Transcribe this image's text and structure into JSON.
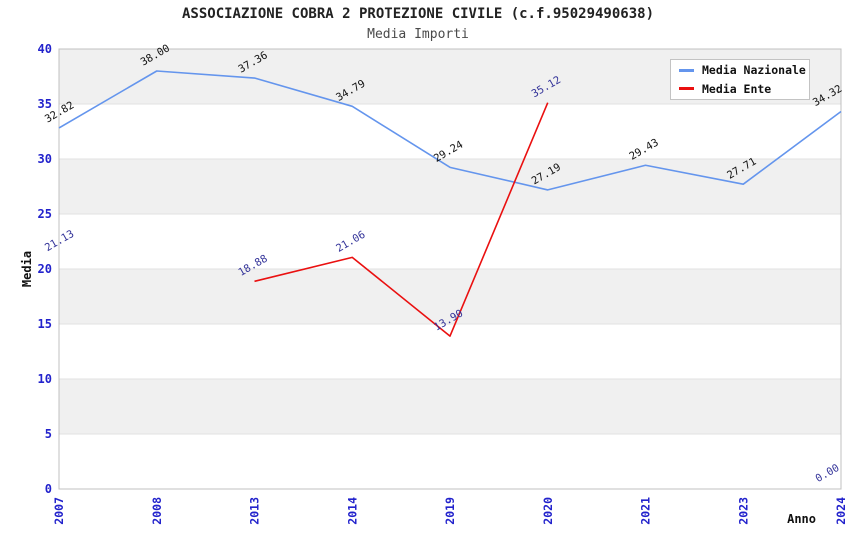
{
  "header": {
    "title": "ASSOCIAZIONE COBRA 2 PROTEZIONE CIVILE (c.f.95029490638)",
    "subtitle": "Media Importi"
  },
  "chart_data": {
    "type": "line",
    "title": "ASSOCIAZIONE COBRA 2 PROTEZIONE CIVILE (c.f.95029490638)",
    "subtitle": "Media Importi",
    "xlabel": "Anno",
    "ylabel": "Media",
    "categories": [
      "2007",
      "2008",
      "2013",
      "2014",
      "2019",
      "2020",
      "2021",
      "2023",
      "2024"
    ],
    "series": [
      {
        "name": "Media Nazionale",
        "color": "#6495ED",
        "label_color": "#111111",
        "values": [
          32.82,
          38.0,
          37.36,
          34.79,
          29.24,
          27.19,
          29.43,
          27.71,
          34.32
        ]
      },
      {
        "name": "Media Ente",
        "color": "#EA1010",
        "label_color": "#333399",
        "values": [
          21.13,
          null,
          18.88,
          21.06,
          13.9,
          35.12,
          null,
          null,
          0.0
        ]
      }
    ],
    "ylim": [
      0,
      40
    ],
    "yticks": [
      0,
      5,
      10,
      15,
      20,
      25,
      30,
      35,
      40
    ],
    "grid": "horizontal-bands",
    "band_color": "#f0f0f0",
    "band_line_color": "#e2e2e2",
    "plot_border_color": "#c0c0c0",
    "tick_label_color": "#2222cc",
    "legend_position": "top-right",
    "legend_entries": [
      "Media Nazionale",
      "Media Ente"
    ],
    "value_label_format": "0.00",
    "value_label_rotation_deg": -30
  }
}
